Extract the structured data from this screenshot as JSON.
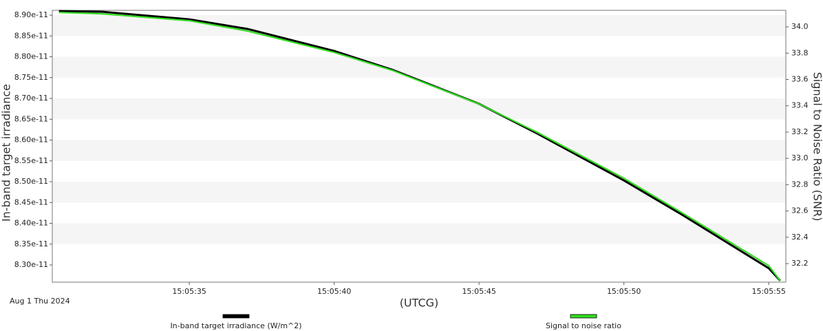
{
  "chart_data": {
    "type": "line",
    "date_label": "Aug 1 Thu 2024",
    "xlabel": "(UTCG)",
    "ylabel": "In-band target irradiance",
    "y2label": "Signal to Noise Ratio (SNR)",
    "x": [
      "15:05:30.5",
      "15:05:32",
      "15:05:35",
      "15:05:37",
      "15:05:40",
      "15:05:42",
      "15:05:45",
      "15:05:47",
      "15:05:50",
      "15:05:52",
      "15:05:55",
      "15:05:55.4"
    ],
    "series": [
      {
        "name": "In-band target irradiance (W/m^2)",
        "color": "#000000",
        "values": [
          8.91e-11,
          8.908e-11,
          8.89e-11,
          8.867e-11,
          8.814e-11,
          8.769e-11,
          8.687e-11,
          8.616e-11,
          8.503e-11,
          8.421e-11,
          8.292e-11,
          8.262e-11
        ]
      },
      {
        "name": "Signal to noise ratio",
        "color": "#33dd22",
        "axis": "y2",
        "values": [
          34.11,
          34.099,
          34.047,
          33.969,
          33.806,
          33.67,
          33.414,
          33.199,
          32.849,
          32.587,
          32.184,
          32.069
        ]
      }
    ],
    "xlim": [
      "15:05:30.27",
      "15:05:55.59"
    ],
    "xticks": [
      "15:05:35",
      "15:05:40",
      "15:05:45",
      "15:05:50",
      "15:05:55"
    ],
    "ylim": [
      8.2587e-11,
      8.9116e-11
    ],
    "yticks": [
      {
        "value": 8.3e-11,
        "label": "8.30e-11"
      },
      {
        "value": 8.35e-11,
        "label": "8.35e-11"
      },
      {
        "value": 8.4e-11,
        "label": "8.40e-11"
      },
      {
        "value": 8.45e-11,
        "label": "8.45e-11"
      },
      {
        "value": 8.5e-11,
        "label": "8.50e-11"
      },
      {
        "value": 8.55e-11,
        "label": "8.55e-11"
      },
      {
        "value": 8.6e-11,
        "label": "8.60e-11"
      },
      {
        "value": 8.65e-11,
        "label": "8.65e-11"
      },
      {
        "value": 8.7e-11,
        "label": "8.70e-11"
      },
      {
        "value": 8.75e-11,
        "label": "8.75e-11"
      },
      {
        "value": 8.8e-11,
        "label": "8.80e-11"
      },
      {
        "value": 8.85e-11,
        "label": "8.85e-11"
      },
      {
        "value": 8.9e-11,
        "label": "8.90e-11"
      }
    ],
    "y2lim": [
      32.059,
      34.126
    ],
    "y2ticks": [
      32.2,
      32.4,
      32.6,
      32.8,
      {
        "value": 33.0,
        "label": "33.0"
      },
      33.2,
      33.4,
      33.6,
      33.8,
      {
        "value": 34.0,
        "label": "34.0"
      }
    ],
    "banded_grid": true
  }
}
